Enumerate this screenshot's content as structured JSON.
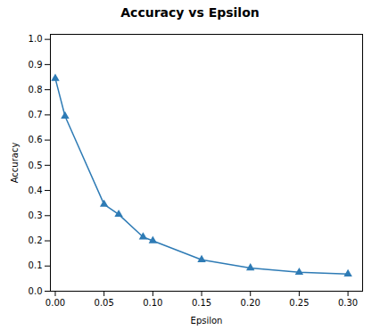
{
  "chart_data": {
    "type": "line",
    "title": "Accuracy vs Epsilon",
    "xlabel": "Epsilon",
    "ylabel": "Accuracy",
    "x": [
      0.0,
      0.01,
      0.05,
      0.065,
      0.09,
      0.1,
      0.15,
      0.2,
      0.25,
      0.3
    ],
    "values": [
      0.845,
      0.695,
      0.345,
      0.305,
      0.215,
      0.2,
      0.125,
      0.092,
      0.075,
      0.068
    ],
    "color": "#2e7bb5",
    "marker": "triangle",
    "xlim": [
      -0.005,
      0.315
    ],
    "ylim": [
      0.0,
      1.02
    ],
    "xticks": [
      {
        "value": 0.0,
        "label": "0.00"
      },
      0.05,
      {
        "value": 0.1,
        "label": "0.10"
      },
      0.15,
      {
        "value": 0.2,
        "label": "0.20"
      },
      0.25,
      {
        "value": 0.3,
        "label": "0.30"
      }
    ],
    "yticks": [
      {
        "value": 0.0,
        "label": "0.0"
      },
      0.1,
      0.2,
      0.3,
      0.4,
      0.5,
      0.6,
      0.7,
      0.8,
      0.9,
      {
        "value": 1.0,
        "label": "1.0"
      }
    ],
    "grid": false
  }
}
